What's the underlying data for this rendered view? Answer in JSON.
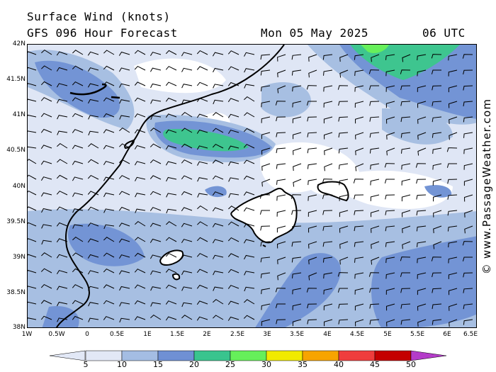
{
  "header": {
    "title": "Surface Wind (knots)",
    "subtitle": "GFS 096 Hour Forecast",
    "datetime": "Mon 05 May 2025",
    "utc": "06 UTC"
  },
  "watermark": "© www.PassageWeather.com",
  "axes": {
    "y_labels": [
      "42N",
      "41.5N",
      "41N",
      "40.5N",
      "40N",
      "39.5N",
      "39N",
      "38.5N",
      "38N"
    ],
    "x_labels": [
      "1W",
      "0.5W",
      "0",
      "0.5E",
      "1E",
      "1.5E",
      "2E",
      "2.5E",
      "3E",
      "3.5E",
      "4E",
      "4.5E",
      "5E",
      "5.5E",
      "6E",
      "6.5E"
    ]
  },
  "legend": {
    "labels": [
      "5",
      "10",
      "15",
      "20",
      "25",
      "30",
      "35",
      "40",
      "45",
      "50"
    ],
    "colors": [
      "#e2e8f6",
      "#a4bde3",
      "#6f90d4",
      "#39c48e",
      "#66ef5a",
      "#f1ea00",
      "#f7a400",
      "#ef3d3d",
      "#c40000",
      "#b43cc9"
    ]
  },
  "field_colors": {
    "white": "#ffffff",
    "pale": "#dfe6f5",
    "light": "#a7bfe2",
    "mid": "#7394d5",
    "teal": "#3ec58f",
    "green": "#67ef5b"
  }
}
